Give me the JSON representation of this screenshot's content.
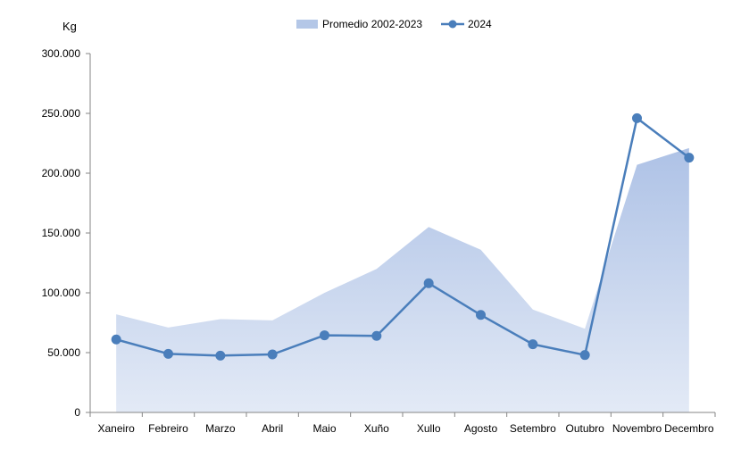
{
  "chart_data": {
    "type": "line",
    "unit_label": "Kg",
    "categories": [
      "Xaneiro",
      "Febreiro",
      "Marzo",
      "Abril",
      "Maio",
      "Xuño",
      "Xullo",
      "Agosto",
      "Setembro",
      "Outubro",
      "Novembro",
      "Decembro"
    ],
    "series": [
      {
        "name": "Promedio 2002-2023",
        "kind": "area",
        "color": "#b4c7e7",
        "values": [
          82000,
          71000,
          78000,
          77000,
          100000,
          120000,
          155000,
          136000,
          86000,
          70000,
          207000,
          221000
        ]
      },
      {
        "name": "2024",
        "kind": "line",
        "color": "#4a7ebb",
        "values": [
          61000,
          49000,
          47500,
          48500,
          64500,
          64000,
          108000,
          81500,
          57000,
          48000,
          246000,
          213000
        ]
      }
    ],
    "ylim": [
      0,
      300000
    ],
    "yticks": [
      0,
      50000,
      100000,
      150000,
      200000,
      250000,
      300000
    ],
    "ytick_labels": [
      "0",
      "50.000",
      "100.000",
      "150.000",
      "200.000",
      "250.000",
      "300.000"
    ],
    "grid": false,
    "legend_position": "top"
  }
}
